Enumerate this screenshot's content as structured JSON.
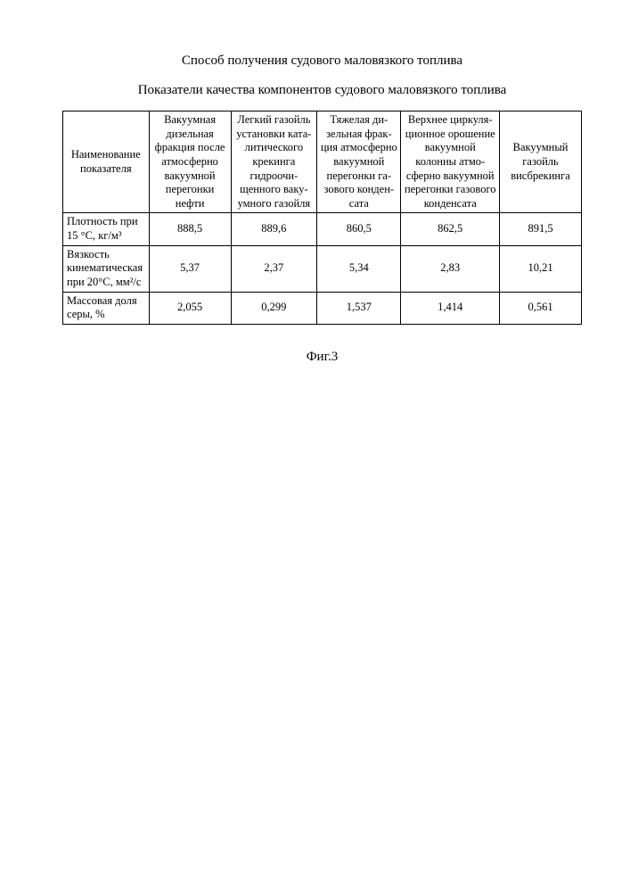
{
  "title": "Способ получения судового маловязкого топлива",
  "subtitle": "Показатели качества компонентов судового маловязкого топлива",
  "figure_label": "Фиг.3",
  "table": {
    "background_color": "#ffffff",
    "border_color": "#000000",
    "font_size_pt": 12.5,
    "text_color": "#000000",
    "columns": [
      "Наименование показателя",
      "Вакуумная дизельная фракция после атмосферно вакуумной перегонки нефти",
      "Легкий газойль установки ката­литического кре­кинга гидроочи­щенного ваку­умного газойля",
      "Тяжелая ди­зельная фрак­ция атмосфер­но вакуумной перегонки га­зового конден­сата",
      "Верхнее циркуля­ционное ороше­ние вакуумной колонны атмо­сферно вакуум­ной перегонки газового конден­сата",
      "Вакуумный газойль висбрекинга"
    ],
    "rows": [
      {
        "label": "Плотность при 15 °C, кг/м³",
        "values": [
          "888,5",
          "889,6",
          "860,5",
          "862,5",
          "891,5"
        ]
      },
      {
        "label": "Вязкость кинема­тическая при 20°C, мм²/c",
        "values": [
          "5,37",
          "2,37",
          "5,34",
          "2,83",
          "10,21"
        ]
      },
      {
        "label": "Массовая доля серы, %",
        "values": [
          "2,055",
          "0,299",
          "1,537",
          "1,414",
          "0,561"
        ]
      }
    ],
    "column_widths_pct": [
      16.6,
      15.8,
      16.6,
      16.2,
      19.0,
      15.8
    ]
  }
}
